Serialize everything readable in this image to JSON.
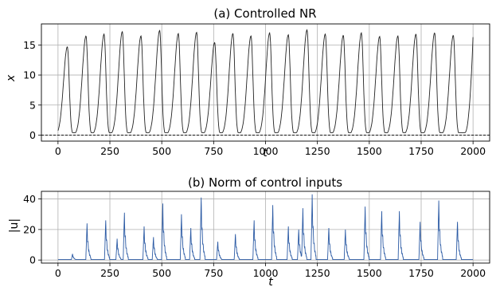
{
  "chart_data": [
    {
      "type": "line",
      "title": "(a) Controlled NR",
      "xlabel": "t",
      "ylabel": "x",
      "xlim": [
        -80,
        2080
      ],
      "ylim": [
        -1,
        18.5
      ],
      "xticks": [
        0,
        250,
        500,
        750,
        1000,
        1250,
        1500,
        1750,
        2000
      ],
      "yticks": [
        0,
        5,
        10,
        15
      ],
      "grid": true,
      "reference_line": {
        "y": 0,
        "style": "dashed",
        "color": "#000000"
      },
      "series": [
        {
          "color": "#222222",
          "baseline": 0.4,
          "peak_times": [
            45,
            135,
            222,
            310,
            400,
            490,
            580,
            668,
            755,
            843,
            930,
            1020,
            1110,
            1200,
            1288,
            1375,
            1462,
            1550,
            1638,
            1725,
            1815,
            1905
          ],
          "peak_values": [
            14.7,
            16.5,
            16.8,
            17.2,
            16.5,
            17.4,
            16.9,
            17.1,
            15.4,
            16.9,
            16.5,
            17.0,
            16.7,
            17.5,
            16.8,
            16.6,
            17.0,
            16.4,
            16.5,
            16.8,
            17.0,
            16.6
          ],
          "end": {
            "t": 2000,
            "x": 16.3
          }
        }
      ]
    },
    {
      "type": "line",
      "title": "(b) Norm of control inputs",
      "xlabel": "t",
      "ylabel": "|u|",
      "xlim": [
        -80,
        2080
      ],
      "ylim": [
        -2,
        45
      ],
      "xticks": [
        0,
        250,
        500,
        750,
        1000,
        1250,
        1500,
        1750,
        2000
      ],
      "yticks": [
        0,
        20,
        40
      ],
      "grid": true,
      "series": [
        {
          "color": "#2b5aa4",
          "baseline": 0.3,
          "bursts": [
            {
              "t": 70,
              "v": 4
            },
            {
              "t": 140,
              "v": 24
            },
            {
              "t": 230,
              "v": 26
            },
            {
              "t": 285,
              "v": 14
            },
            {
              "t": 320,
              "v": 31
            },
            {
              "t": 415,
              "v": 22
            },
            {
              "t": 460,
              "v": 15
            },
            {
              "t": 505,
              "v": 37
            },
            {
              "t": 595,
              "v": 30
            },
            {
              "t": 640,
              "v": 21
            },
            {
              "t": 690,
              "v": 41
            },
            {
              "t": 770,
              "v": 12
            },
            {
              "t": 855,
              "v": 17
            },
            {
              "t": 945,
              "v": 26
            },
            {
              "t": 1035,
              "v": 36
            },
            {
              "t": 1110,
              "v": 22
            },
            {
              "t": 1160,
              "v": 20
            },
            {
              "t": 1180,
              "v": 34
            },
            {
              "t": 1225,
              "v": 43
            },
            {
              "t": 1305,
              "v": 21
            },
            {
              "t": 1385,
              "v": 20
            },
            {
              "t": 1480,
              "v": 35
            },
            {
              "t": 1560,
              "v": 32
            },
            {
              "t": 1645,
              "v": 32
            },
            {
              "t": 1745,
              "v": 25
            },
            {
              "t": 1835,
              "v": 39
            },
            {
              "t": 1925,
              "v": 25
            }
          ]
        }
      ]
    }
  ]
}
